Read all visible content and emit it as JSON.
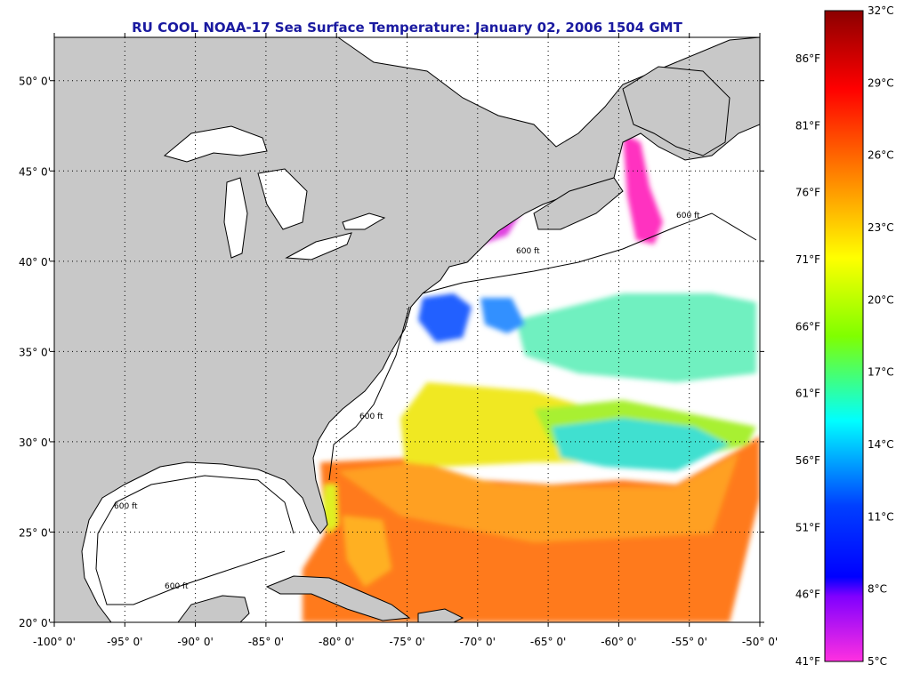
{
  "title": "RU COOL  NOAA-17  Sea Surface Temperature:  January 02, 2006 1504 GMT",
  "map": {
    "lon_ticks": [
      "-100° 0'",
      "-95° 0'",
      "-90° 0'",
      "-85° 0'",
      "-80° 0'",
      "-75° 0'",
      "-70° 0'",
      "-65° 0'",
      "-60° 0'",
      "-55° 0'",
      "-50° 0'"
    ],
    "lat_ticks": [
      "50° 0'",
      "45° 0'",
      "40° 0'",
      "35° 0'",
      "30° 0'",
      "25° 0'",
      "20° 0'"
    ],
    "lon_range": [
      -100,
      -50
    ],
    "lat_range": [
      20,
      52.4
    ],
    "land_color": "#c8c8c8",
    "ocean_nodata_color": "#ffffff",
    "isobath_label": "600 ft"
  },
  "colorbar": {
    "fahrenheit": [
      "86°F",
      "81°F",
      "76°F",
      "71°F",
      "66°F",
      "61°F",
      "56°F",
      "51°F",
      "46°F",
      "41°F"
    ],
    "celsius": [
      "32°C",
      "29°C",
      "26°C",
      "23°C",
      "20°C",
      "17°C",
      "14°C",
      "11°C",
      "8°C",
      "5°C"
    ],
    "stops": [
      "#8b0000",
      "#ff0000",
      "#ff8000",
      "#ffff00",
      "#80ff00",
      "#00ffff",
      "#0000ff",
      "#8000ff",
      "#ff00ff"
    ]
  }
}
